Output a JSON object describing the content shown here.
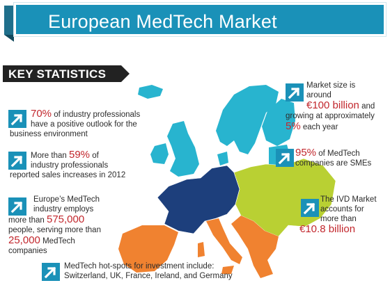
{
  "header": {
    "title": "European MedTech Market"
  },
  "banner": {
    "label": "KEY STATISTICS"
  },
  "colors": {
    "header_blue": "#1a91b8",
    "accent_red": "#c2272d",
    "region_north_cyan": "#28b4cf",
    "region_west_navy": "#1d3f7c",
    "region_east_lime": "#b9d033",
    "region_south_orange": "#f08230"
  },
  "stats": {
    "outlook": {
      "value": "70%",
      "text1": "of industry professionals",
      "text2": "have a positive outlook for the",
      "text3": "business environment"
    },
    "sales": {
      "text1a": "More than",
      "value": "59%",
      "text1b": "of",
      "text2": "industry professionals",
      "text3": "reported sales increases in 2012"
    },
    "employs": {
      "text1": "Europe’s MedTech",
      "text2": "industry employs",
      "text3a": "more than",
      "value": "575,000",
      "text4": "people, serving more than",
      "value2": "25,000",
      "text5": "MedTech",
      "text6": "companies"
    },
    "hotspots": {
      "text1": "MedTech hot-spots for investment include:",
      "text2": "Switzerland, UK, France, Ireland, and Germany"
    },
    "market_size": {
      "text1": "Market size is",
      "text2": "around",
      "value": "€100 billion",
      "text3": "and",
      "text4": "growing at approximately",
      "value2": "5%",
      "text5": "each year"
    },
    "smes": {
      "value": "95%",
      "text1": "of MedTech",
      "text2": "companies are SMEs"
    },
    "ivd": {
      "text1": "The IVD Market",
      "text2": "accounts for",
      "text3": "more than",
      "value": "€10.8 billion"
    }
  },
  "icons": {
    "stat_icon": "trend-up-arrow-icon"
  }
}
